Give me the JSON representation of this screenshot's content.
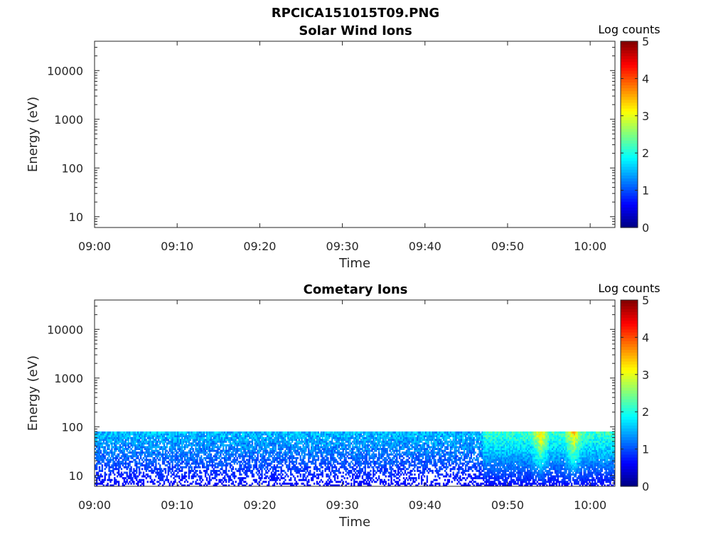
{
  "figure_title": "RPCICA151015T09.PNG",
  "chart_data": [
    {
      "type": "heatmap",
      "title": "Solar Wind Ions",
      "xlabel": "Time",
      "ylabel": "Energy (eV)",
      "yscale": "log",
      "ylim": [
        6,
        40000
      ],
      "xlim": [
        "09:00",
        "10:03"
      ],
      "x_ticks": [
        "09:00",
        "09:10",
        "09:20",
        "09:30",
        "09:40",
        "09:50",
        "10:00"
      ],
      "y_ticks": [
        "10",
        "100",
        "1000",
        "10000"
      ],
      "colorbar": {
        "label": "Log counts",
        "range": [
          0,
          5
        ],
        "ticks": [
          "0",
          "1",
          "2",
          "3",
          "4",
          "5"
        ],
        "colormap": "jet"
      },
      "data": "empty"
    },
    {
      "type": "heatmap",
      "title": "Cometary Ions",
      "xlabel": "Time",
      "ylabel": "Energy (eV)",
      "yscale": "log",
      "ylim": [
        6,
        40000
      ],
      "xlim": [
        "09:00",
        "10:03"
      ],
      "x_ticks": [
        "09:00",
        "09:10",
        "09:20",
        "09:30",
        "09:40",
        "09:50",
        "10:00"
      ],
      "y_ticks": [
        "10",
        "100",
        "1000",
        "10000"
      ],
      "colorbar": {
        "label": "Log counts",
        "range": [
          0,
          5
        ],
        "ticks": [
          "0",
          "1",
          "2",
          "3",
          "4",
          "5"
        ],
        "colormap": "jet"
      },
      "data": {
        "energy_range_eV": [
          6,
          80
        ],
        "typical_log_counts": [
          0.3,
          1.8
        ],
        "enhanced_intervals": [
          {
            "start": "09:47",
            "end": "10:03",
            "log_counts_peak": 3.0
          }
        ],
        "peak_events": [
          {
            "time": "09:54",
            "log_counts": 3.0
          },
          {
            "time": "09:58",
            "log_counts": 3.0
          }
        ]
      }
    }
  ]
}
